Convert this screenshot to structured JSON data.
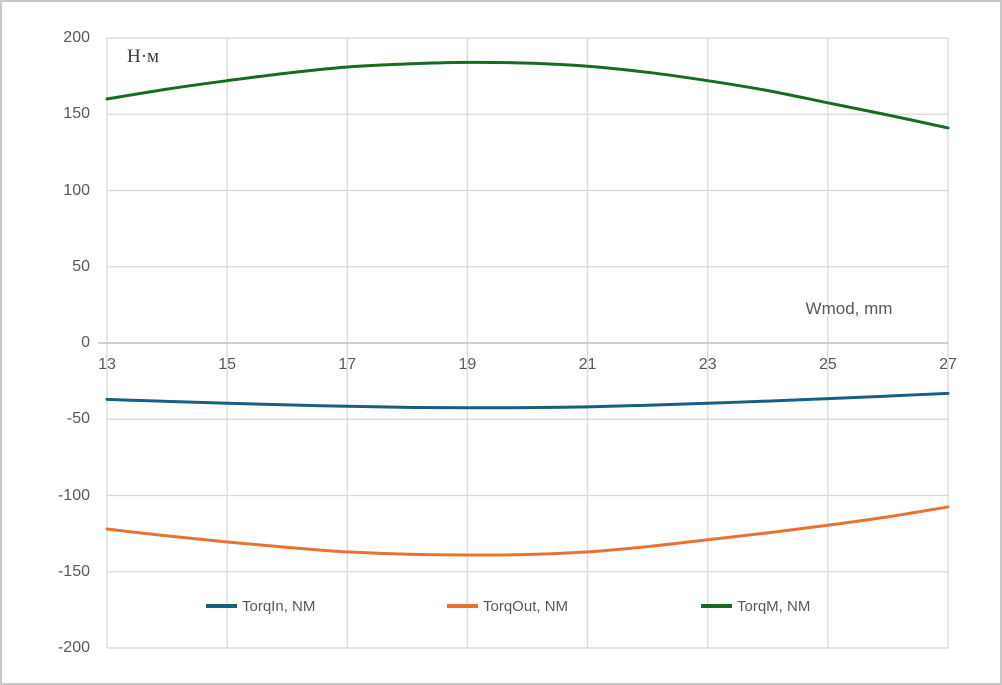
{
  "frame": {
    "background": "#ffffff",
    "border_color": "#c9c9c9"
  },
  "chart_data": {
    "type": "line",
    "title": "",
    "unit_label": "Н·м",
    "x_axis_label": "Wmod, mm",
    "x": [
      13,
      14,
      15,
      16,
      17,
      18,
      19,
      20,
      21,
      22,
      23,
      24,
      25,
      26,
      27
    ],
    "series": [
      {
        "name": "TorqIn, NM",
        "color": "#156082",
        "values": [
          -37,
          -38.3,
          -39.5,
          -40.6,
          -41.5,
          -42.2,
          -42.5,
          -42.4,
          -41.9,
          -40.8,
          -39.5,
          -38.1,
          -36.5,
          -34.8,
          -33
        ]
      },
      {
        "name": "TorqOut, NM",
        "color": "#E97132",
        "values": [
          -122,
          -126.5,
          -130.5,
          -134,
          -137,
          -138.5,
          -139,
          -138.7,
          -137,
          -133.5,
          -129,
          -124.5,
          -119.5,
          -114,
          -107.5
        ]
      },
      {
        "name": "TorqM, NM",
        "color": "#196B24",
        "values": [
          160,
          166.5,
          172,
          177,
          181,
          183,
          184,
          183.5,
          181.5,
          177.5,
          172,
          165.5,
          157.5,
          149.5,
          141
        ]
      }
    ],
    "xlim": [
      13,
      27
    ],
    "ylim": [
      -200,
      200
    ],
    "xticks": [
      13,
      15,
      17,
      19,
      21,
      23,
      25,
      27
    ],
    "yticks": [
      200,
      150,
      100,
      50,
      0,
      -50,
      -100,
      -150,
      -200
    ],
    "grid": true,
    "gridline_color": "#D9D9D9",
    "axis_line_color": "#BFBFBF",
    "plot_border_color": "#D9D9D9",
    "tick_label_color": "#595959",
    "legend_position": "bottom-inside"
  }
}
